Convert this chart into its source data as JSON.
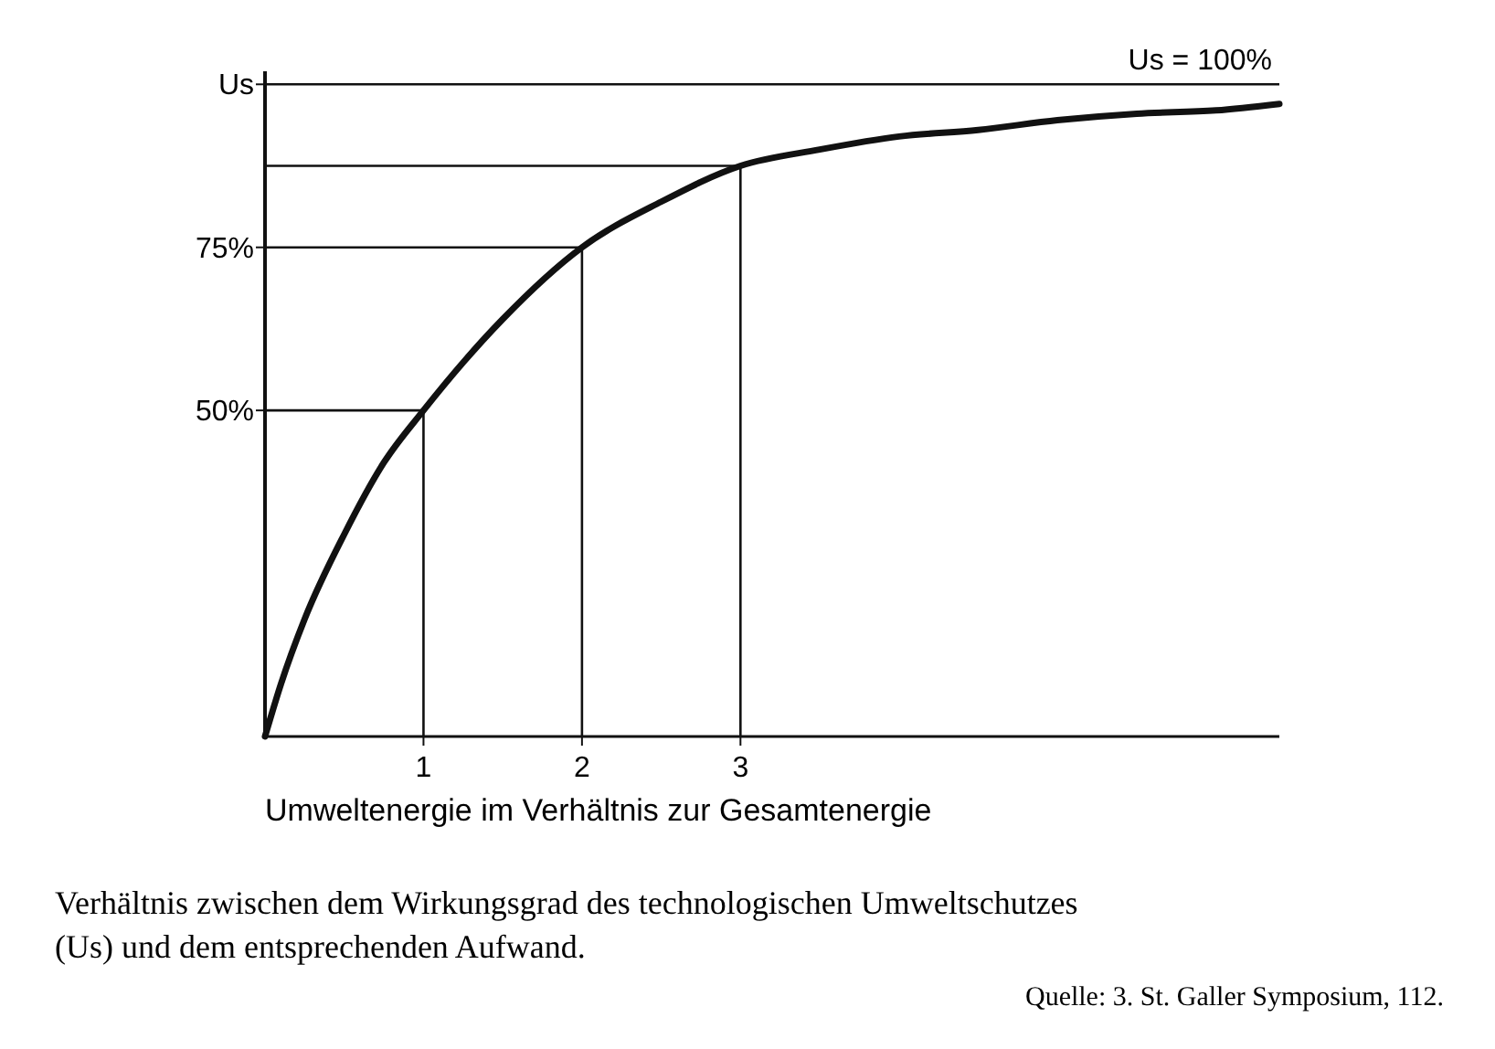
{
  "chart_data": {
    "type": "line",
    "xlabel": "Umweltenergie im Verhältnis zur Gesamtenergie",
    "x": [
      0,
      0.1,
      0.25,
      0.5,
      0.75,
      1,
      1.5,
      2,
      2.5,
      3,
      3.5,
      4,
      4.5,
      5,
      5.5,
      6,
      6.4
    ],
    "series": [
      {
        "color": "#111111",
        "values": [
          0,
          8,
          18,
          31,
          42,
          50,
          64,
          75,
          82,
          87.5,
          90,
          92,
          93,
          94.5,
          95.5,
          96,
          97
        ]
      }
    ],
    "xlim": [
      0,
      6.4
    ],
    "ylim": [
      0,
      102
    ],
    "xticks": [
      1,
      2,
      3
    ],
    "yticks": [
      {
        "value": 50,
        "label": "50%"
      },
      {
        "value": 75,
        "label": "75%"
      },
      {
        "value": 100,
        "label": "Us"
      }
    ],
    "ref_lines": [
      {
        "axis": "y",
        "value": 100,
        "label": "Us = 100%"
      },
      {
        "axis": "x",
        "value": 1
      },
      {
        "axis": "x",
        "value": 2
      },
      {
        "axis": "x",
        "value": 3
      },
      {
        "axis": "y",
        "value": 50
      },
      {
        "axis": "y",
        "value": 75
      },
      {
        "axis": "y",
        "value": 87.5
      }
    ],
    "annotations": [
      "Verhältnis zwischen dem Wirkungsgrad des technologischen Umweltschutzes (Us) und dem entsprechenden Aufwand.",
      "Quelle: 3. St. Galler Symposium, 112."
    ],
    "grid": false,
    "marker": "none",
    "line_style": "solid"
  }
}
